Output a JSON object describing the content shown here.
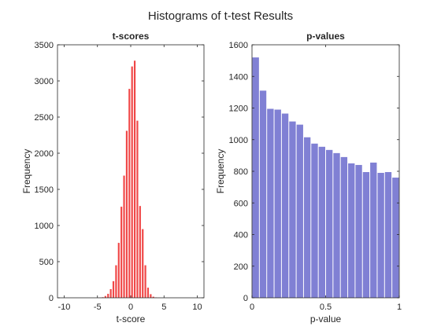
{
  "figure": {
    "title": "Histograms of t-test Results"
  },
  "chart_data": [
    {
      "type": "bar",
      "title": "t-scores",
      "xlabel": "t-score",
      "ylabel": "Frequency",
      "xlim": [
        -11,
        11
      ],
      "ylim": [
        0,
        3500
      ],
      "xticks": [
        -10,
        -5,
        0,
        5,
        10
      ],
      "yticks": [
        0,
        500,
        1000,
        1500,
        2000,
        2500,
        3000,
        3500
      ],
      "bin_width": 0.4,
      "bin_centers": [
        -4.6,
        -4.2,
        -3.8,
        -3.4,
        -3.0,
        -2.6,
        -2.2,
        -1.8,
        -1.4,
        -1.0,
        -0.6,
        -0.2,
        0.2,
        0.6,
        1.0,
        1.4,
        1.8,
        2.2,
        2.6,
        3.0,
        3.4,
        3.8,
        4.2
      ],
      "values": [
        3,
        8,
        25,
        55,
        120,
        230,
        450,
        760,
        1260,
        1690,
        2310,
        2890,
        3200,
        3280,
        2450,
        1270,
        950,
        450,
        140,
        50,
        15,
        5,
        2
      ],
      "color": "#f04747",
      "grid": false,
      "box": true
    },
    {
      "type": "bar",
      "title": "p-values",
      "xlabel": "p-value",
      "ylabel": "Frequency",
      "xlim": [
        0,
        1
      ],
      "ylim": [
        0,
        1600
      ],
      "xticks": [
        0,
        0.5,
        1
      ],
      "yticks": [
        0,
        200,
        400,
        600,
        800,
        1000,
        1200,
        1400,
        1600
      ],
      "bin_width": 0.05,
      "bin_centers": [
        0.025,
        0.075,
        0.125,
        0.175,
        0.225,
        0.275,
        0.325,
        0.375,
        0.425,
        0.475,
        0.525,
        0.575,
        0.625,
        0.675,
        0.725,
        0.775,
        0.825,
        0.875,
        0.925,
        0.975
      ],
      "values": [
        1520,
        1310,
        1195,
        1190,
        1165,
        1115,
        1095,
        1015,
        975,
        955,
        935,
        915,
        890,
        850,
        840,
        795,
        855,
        790,
        795,
        830
      ],
      "last_value": 760,
      "color": "#8080d4",
      "grid": false,
      "box": true
    }
  ]
}
